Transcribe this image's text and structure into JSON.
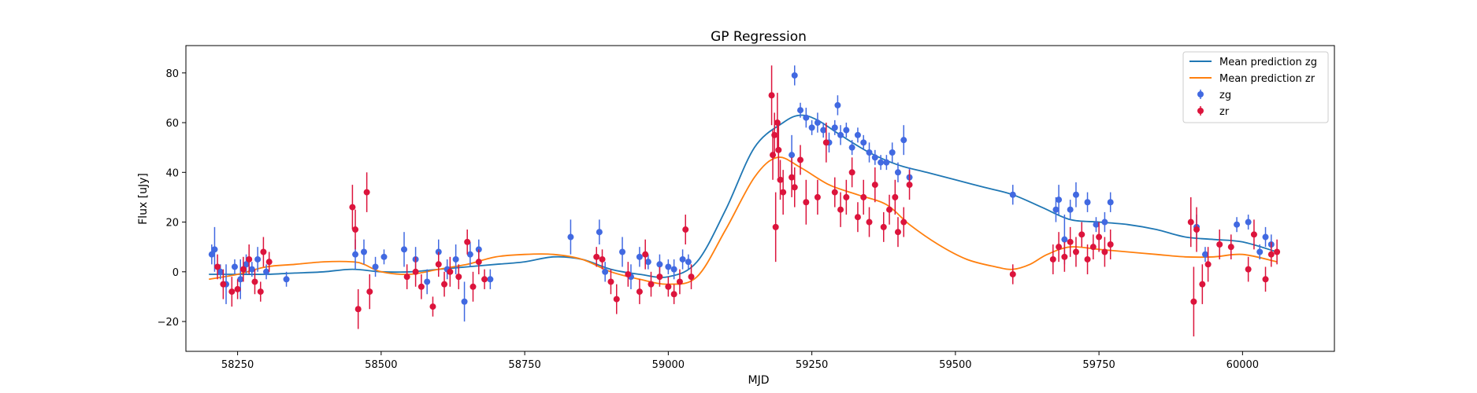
{
  "chart_data": {
    "type": "scatter",
    "title": "GP Regression",
    "xlabel": "MJD",
    "ylabel": "Flux [uJy]",
    "xlim": [
      58160,
      60160
    ],
    "ylim": [
      -32,
      91
    ],
    "xticks": [
      58250,
      58500,
      58750,
      59000,
      59250,
      59500,
      59750,
      60000
    ],
    "yticks": [
      -20,
      0,
      20,
      40,
      60,
      80
    ],
    "grid": false,
    "legend_position": "top-right",
    "colors": {
      "mean_zg": "#1f77b4",
      "mean_zr": "#ff7f0e",
      "zg": "#4169e1",
      "zr": "#dc143c"
    },
    "lines": [
      {
        "name": "Mean prediction zg",
        "x": [
          58200,
          58250,
          58300,
          58350,
          58400,
          58450,
          58500,
          58550,
          58600,
          58650,
          58700,
          58750,
          58800,
          58850,
          58900,
          58950,
          59000,
          59050,
          59100,
          59150,
          59200,
          59230,
          59260,
          59300,
          59350,
          59400,
          59450,
          59500,
          59550,
          59600,
          59650,
          59700,
          59750,
          59800,
          59850,
          59900,
          59950,
          60000,
          60060
        ],
        "y": [
          -1,
          -1,
          -1,
          -0.5,
          0,
          1,
          0,
          0,
          1,
          2,
          3,
          4,
          6,
          5,
          1,
          -1,
          -2,
          4,
          25,
          50,
          60,
          63,
          61,
          55,
          48,
          43,
          40,
          37,
          34,
          31,
          26,
          21,
          20,
          19,
          17,
          14,
          13,
          12,
          8
        ]
      },
      {
        "name": "Mean prediction zr",
        "x": [
          58200,
          58250,
          58300,
          58350,
          58400,
          58450,
          58470,
          58500,
          58550,
          58600,
          58650,
          58700,
          58750,
          58800,
          58850,
          58900,
          58950,
          59000,
          59050,
          59100,
          59150,
          59190,
          59230,
          59280,
          59330,
          59380,
          59420,
          59470,
          59520,
          59570,
          59600,
          59630,
          59660,
          59700,
          59750,
          59800,
          59850,
          59900,
          59950,
          60000,
          60060
        ],
        "y": [
          -3,
          -1,
          2,
          3,
          4,
          4,
          3,
          0,
          -1,
          1,
          3,
          6,
          7,
          7,
          5,
          0,
          -3,
          -5,
          -2,
          17,
          38,
          46,
          42,
          35,
          31,
          27,
          19,
          11,
          5,
          2,
          1,
          3,
          7,
          10,
          9,
          8,
          7,
          6,
          6,
          7,
          4
        ]
      }
    ],
    "series": [
      {
        "name": "zg",
        "x": [
          58205,
          58210,
          58220,
          58230,
          58245,
          58255,
          58265,
          58275,
          58285,
          58300,
          58335,
          58455,
          58470,
          58490,
          58505,
          58540,
          58560,
          58580,
          58600,
          58615,
          58630,
          58645,
          58655,
          58670,
          58690,
          58830,
          58880,
          58890,
          58920,
          58935,
          58950,
          58965,
          58985,
          59000,
          59010,
          59025,
          59035,
          59215,
          59220,
          59230,
          59240,
          59250,
          59260,
          59270,
          59280,
          59290,
          59295,
          59300,
          59310,
          59320,
          59330,
          59340,
          59350,
          59360,
          59370,
          59380,
          59390,
          59400,
          59410,
          59420,
          59600,
          59675,
          59680,
          59690,
          59700,
          59710,
          59730,
          59745,
          59760,
          59770,
          59920,
          59935,
          59990,
          60010,
          60030,
          60040,
          60050
        ],
        "y": [
          7,
          9,
          0,
          -5,
          2,
          -3,
          3,
          1,
          5,
          0,
          -3,
          7,
          8,
          2,
          6,
          9,
          5,
          -4,
          8,
          1,
          5,
          -12,
          7,
          9,
          -3,
          14,
          16,
          0,
          8,
          -2,
          6,
          4,
          3,
          2,
          1,
          5,
          4,
          47,
          79,
          65,
          62,
          58,
          60,
          57,
          52,
          58,
          67,
          55,
          57,
          50,
          55,
          52,
          48,
          46,
          44,
          44,
          48,
          40,
          53,
          38,
          31,
          25,
          29,
          13,
          25,
          31,
          28,
          19,
          20,
          28,
          18,
          7,
          19,
          20,
          8,
          14,
          11
        ],
        "err": [
          4,
          9,
          3,
          8,
          3,
          8,
          4,
          3,
          5,
          3,
          3,
          6,
          5,
          4,
          3,
          7,
          5,
          5,
          5,
          4,
          6,
          8,
          5,
          4,
          4,
          7,
          5,
          4,
          6,
          5,
          4,
          3,
          4,
          3,
          4,
          4,
          3,
          8,
          4,
          3,
          4,
          3,
          4,
          3,
          4,
          3,
          4,
          4,
          3,
          3,
          3,
          3,
          4,
          3,
          3,
          3,
          4,
          4,
          6,
          4,
          4,
          5,
          6,
          10,
          4,
          5,
          4,
          3,
          4,
          4,
          5,
          3,
          3,
          3,
          3,
          4,
          4
        ]
      },
      {
        "name": "zr",
        "x": [
          58215,
          58225,
          58240,
          58250,
          58260,
          58270,
          58280,
          58290,
          58295,
          58305,
          58450,
          58455,
          58460,
          58475,
          58480,
          58545,
          58560,
          58570,
          58590,
          58600,
          58610,
          58620,
          58635,
          58650,
          58660,
          58670,
          58680,
          58875,
          58885,
          58900,
          58910,
          58930,
          58950,
          58960,
          58970,
          58985,
          59000,
          59010,
          59020,
          59030,
          59040,
          59180,
          59182,
          59185,
          59187,
          59190,
          59192,
          59195,
          59200,
          59215,
          59220,
          59230,
          59240,
          59260,
          59275,
          59290,
          59300,
          59310,
          59320,
          59330,
          59340,
          59350,
          59360,
          59375,
          59385,
          59395,
          59400,
          59410,
          59420,
          59600,
          59670,
          59680,
          59690,
          59700,
          59710,
          59720,
          59730,
          59740,
          59750,
          59760,
          59770,
          59910,
          59915,
          59920,
          59930,
          59940,
          59960,
          59980,
          60010,
          60020,
          60040,
          60050,
          60060
        ],
        "y": [
          2,
          -5,
          -8,
          -7,
          1,
          5,
          -4,
          -8,
          8,
          4,
          26,
          17,
          -15,
          32,
          -8,
          -2,
          0,
          -6,
          -14,
          3,
          -5,
          0,
          -2,
          12,
          -6,
          4,
          -3,
          6,
          5,
          -4,
          -11,
          -1,
          -8,
          7,
          -5,
          -2,
          -6,
          -9,
          -4,
          17,
          -2,
          71,
          47,
          55,
          18,
          60,
          49,
          37,
          32,
          38,
          34,
          45,
          28,
          30,
          52,
          32,
          25,
          30,
          40,
          22,
          30,
          20,
          35,
          18,
          25,
          30,
          16,
          20,
          35,
          -1,
          5,
          10,
          6,
          12,
          8,
          15,
          5,
          10,
          14,
          8,
          11,
          20,
          -12,
          17,
          -5,
          3,
          11,
          10,
          1,
          15,
          -3,
          7,
          8
        ],
        "err": [
          5,
          6,
          6,
          4,
          5,
          6,
          5,
          4,
          6,
          4,
          9,
          8,
          8,
          8,
          7,
          5,
          6,
          5,
          4,
          5,
          5,
          6,
          5,
          5,
          6,
          5,
          4,
          4,
          4,
          5,
          6,
          5,
          5,
          6,
          5,
          4,
          4,
          4,
          5,
          6,
          5,
          12,
          10,
          9,
          14,
          12,
          11,
          8,
          9,
          8,
          8,
          6,
          9,
          7,
          8,
          6,
          7,
          7,
          6,
          6,
          7,
          6,
          7,
          6,
          6,
          7,
          6,
          6,
          6,
          4,
          6,
          6,
          6,
          6,
          6,
          5,
          6,
          5,
          6,
          6,
          6,
          10,
          14,
          9,
          8,
          7,
          6,
          5,
          5,
          6,
          5,
          5,
          5
        ]
      }
    ]
  }
}
